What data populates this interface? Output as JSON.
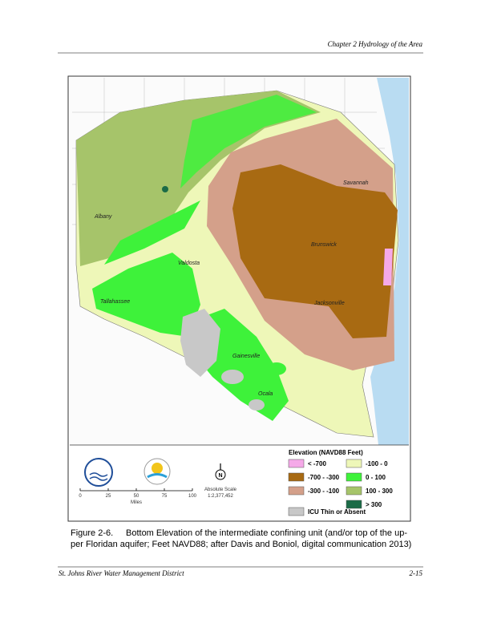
{
  "header": {
    "title": "Chapter 2 Hydrology of the Area"
  },
  "figure": {
    "city_labels": [
      "Savannah",
      "Albany",
      "Brunswick",
      "Valdosta",
      "Tallahassee",
      "Jacksonville",
      "Gainesville",
      "Ocala"
    ],
    "legend": {
      "title": "Elevation (NAVD88 Feet)",
      "items": [
        {
          "label": "< -700",
          "color": "#f5a9e8"
        },
        {
          "label": "-100 - 0",
          "color": "#eef7b8"
        },
        {
          "label": "-700 - -300",
          "color": "#a86a12"
        },
        {
          "label": "0 - 100",
          "color": "#3ef23a"
        },
        {
          "label": "-300 - -100",
          "color": "#d4a08a"
        },
        {
          "label": "100 - 300",
          "color": "#a6c46a"
        },
        {
          "label": "> 300",
          "color": "#1b6b47"
        },
        {
          "label": "ICU Thin or Absent",
          "color": "#c8c8c8"
        }
      ]
    },
    "scale_bar": {
      "ticks": [
        "0",
        "25",
        "50",
        "75",
        "100"
      ],
      "unit": "Miles"
    },
    "north": "N",
    "scale_text": [
      "Absolute Scale",
      "1:2,377,452"
    ]
  },
  "caption": {
    "label": "Figure 2-6.",
    "lines": [
      "Bottom Elevation of the intermediate confining unit (and/or top of the up-",
      "per Floridan aquifer; Feet NAVD88; after Davis and Boniol, digital communication 2013)"
    ]
  },
  "footer": {
    "left": "St. Johns River Water Management District",
    "right": "2-15"
  }
}
